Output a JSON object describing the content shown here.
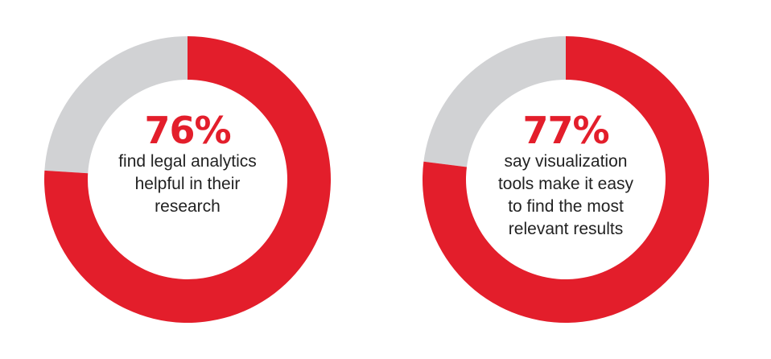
{
  "colors": {
    "accent": "#e31e2b",
    "remainder": "#d1d2d4",
    "text": "#222222"
  },
  "chart_data": [
    {
      "type": "pie",
      "style": "donut",
      "value": 76,
      "values": [
        76,
        24
      ],
      "percent_label": "76%",
      "description": "find legal analytics\nhelpful in their\nresearch"
    },
    {
      "type": "pie",
      "style": "donut",
      "value": 77,
      "values": [
        77,
        23
      ],
      "percent_label": "77%",
      "description": "say visualization\ntools make it easy\nto find the most\nrelevant results"
    }
  ]
}
